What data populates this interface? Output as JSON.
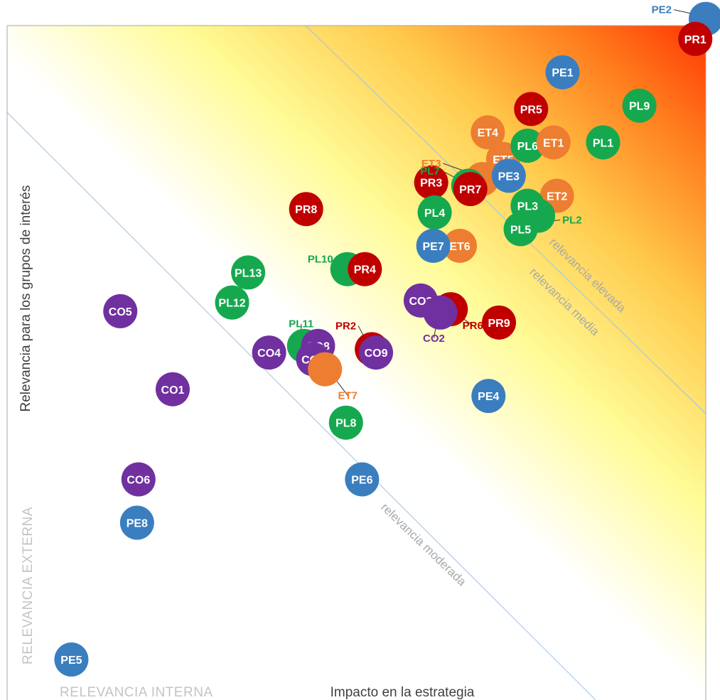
{
  "chart_data": {
    "type": "scatter",
    "xlabel": "Impacto en la estrategia",
    "ylabel": "Relevancia para los grupos de interés",
    "corner_labels": {
      "x_origin": "RELEVANCIA INTERNA",
      "y_origin": "RELEVANCIA EXTERNA"
    },
    "zones": [
      "relevancia moderada",
      "relevancia media",
      "relevancia elevada"
    ],
    "xlim": [
      0,
      100
    ],
    "ylim": [
      0,
      100
    ],
    "grid": false,
    "legend": "none",
    "background": "gradient white (bottom-left) to yellow to orange to red (top-right)",
    "colors": {
      "PE": "#3a7ebf",
      "PR": "#c00000",
      "PL": "#16a84e",
      "ET": "#ed7d31",
      "CO": "#7030a0"
    },
    "points": [
      {
        "label": "PE2",
        "group": "PE",
        "x": 100,
        "y": 101
      },
      {
        "label": "PR1",
        "group": "PR",
        "x": 98.5,
        "y": 98
      },
      {
        "label": "PE1",
        "group": "PE",
        "x": 79.5,
        "y": 93
      },
      {
        "label": "PL9",
        "group": "PL",
        "x": 90.5,
        "y": 88
      },
      {
        "label": "PR5",
        "group": "PR",
        "x": 75,
        "y": 87.5
      },
      {
        "label": "ET4",
        "group": "ET",
        "x": 68.8,
        "y": 84
      },
      {
        "label": "ET3",
        "group": "ET",
        "x": 68,
        "y": 77
      },
      {
        "label": "ET5",
        "group": "ET",
        "x": 71,
        "y": 80
      },
      {
        "label": "PL6",
        "group": "PL",
        "x": 74.5,
        "y": 82
      },
      {
        "label": "ET1",
        "group": "ET",
        "x": 78.2,
        "y": 82.5
      },
      {
        "label": "PL1",
        "group": "PL",
        "x": 85.3,
        "y": 82.5
      },
      {
        "label": "PL7",
        "group": "PL",
        "x": 66,
        "y": 76
      },
      {
        "label": "PE3",
        "group": "PE",
        "x": 71.8,
        "y": 77.5
      },
      {
        "label": "PR3",
        "group": "PR",
        "x": 60.7,
        "y": 76.5
      },
      {
        "label": "PR7",
        "group": "PR",
        "x": 66.3,
        "y": 75.5
      },
      {
        "label": "ET2",
        "group": "ET",
        "x": 78.7,
        "y": 74.5
      },
      {
        "label": "PL2",
        "group": "PL",
        "x": 76,
        "y": 71.5
      },
      {
        "label": "PL3",
        "group": "PL",
        "x": 74.5,
        "y": 73
      },
      {
        "label": "PL4",
        "group": "PL",
        "x": 61.2,
        "y": 72
      },
      {
        "label": "PL5",
        "group": "PL",
        "x": 73.5,
        "y": 69.5
      },
      {
        "label": "PR8",
        "group": "PR",
        "x": 42.8,
        "y": 72.5
      },
      {
        "label": "ET6",
        "group": "ET",
        "x": 64.8,
        "y": 67
      },
      {
        "label": "PE7",
        "group": "PE",
        "x": 61,
        "y": 67
      },
      {
        "label": "PL10",
        "group": "PL",
        "x": 48.7,
        "y": 63.5
      },
      {
        "label": "PR4",
        "group": "PR",
        "x": 51.2,
        "y": 63.5
      },
      {
        "label": "PL13",
        "group": "PL",
        "x": 34.5,
        "y": 63
      },
      {
        "label": "PL12",
        "group": "PL",
        "x": 32.2,
        "y": 58.5
      },
      {
        "label": "CO5",
        "group": "CO",
        "x": 16.2,
        "y": 57.2
      },
      {
        "label": "CO3",
        "group": "CO",
        "x": 59.2,
        "y": 58.8
      },
      {
        "label": "PR6",
        "group": "PR",
        "x": 63.5,
        "y": 57.5
      },
      {
        "label": "CO2",
        "group": "CO",
        "x": 62,
        "y": 57
      },
      {
        "label": "PR9",
        "group": "PR",
        "x": 70.4,
        "y": 55.5
      },
      {
        "label": "PL11",
        "group": "PL",
        "x": 42.5,
        "y": 52
      },
      {
        "label": "PR2",
        "group": "PR",
        "x": 52.2,
        "y": 51.5
      },
      {
        "label": "CO4",
        "group": "CO",
        "x": 37.5,
        "y": 51
      },
      {
        "label": "CO8",
        "group": "CO",
        "x": 44.5,
        "y": 52
      },
      {
        "label": "CO7",
        "group": "CO",
        "x": 43.8,
        "y": 50
      },
      {
        "label": "CO9",
        "group": "CO",
        "x": 52.8,
        "y": 51
      },
      {
        "label": "ET7",
        "group": "ET",
        "x": 45.5,
        "y": 48.5
      },
      {
        "label": "CO1",
        "group": "CO",
        "x": 23.7,
        "y": 45.5
      },
      {
        "label": "PE4",
        "group": "PE",
        "x": 68.9,
        "y": 44.5
      },
      {
        "label": "PL8",
        "group": "PL",
        "x": 48.5,
        "y": 40.5
      },
      {
        "label": "PE6",
        "group": "PE",
        "x": 50.8,
        "y": 32
      },
      {
        "label": "CO6",
        "group": "CO",
        "x": 18.8,
        "y": 32
      },
      {
        "label": "PE8",
        "group": "PE",
        "x": 18.6,
        "y": 25.5
      },
      {
        "label": "PE5",
        "group": "PE",
        "x": 9.2,
        "y": 5
      }
    ],
    "callouts": [
      {
        "label": "PE2",
        "group": "PE"
      },
      {
        "label": "ET3",
        "group": "ET"
      },
      {
        "label": "PL7",
        "group": "PL"
      },
      {
        "label": "PL2",
        "group": "PL"
      },
      {
        "label": "PL10",
        "group": "PL"
      },
      {
        "label": "PL11",
        "group": "PL"
      },
      {
        "label": "PR2",
        "group": "PR"
      },
      {
        "label": "CO2",
        "group": "CO"
      },
      {
        "label": "PR6",
        "group": "PR"
      },
      {
        "label": "ET7",
        "group": "ET"
      }
    ]
  }
}
